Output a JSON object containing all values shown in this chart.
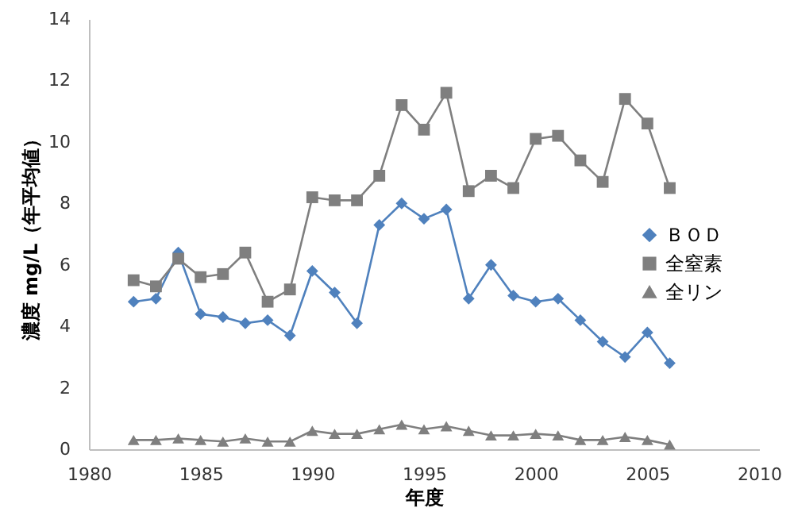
{
  "chart_data": {
    "type": "line",
    "xlabel": "年度",
    "ylabel": "濃度 mg/L（年平均値）",
    "x": [
      1982,
      1983,
      1984,
      1985,
      1986,
      1987,
      1988,
      1989,
      1990,
      1991,
      1992,
      1993,
      1994,
      1995,
      1996,
      1997,
      1998,
      1999,
      2000,
      2001,
      2002,
      2003,
      2004,
      2005,
      2006
    ],
    "series": [
      {
        "name": "ＢＯＤ",
        "color": "#4f81bd",
        "marker": "diamond",
        "values": [
          4.8,
          4.9,
          6.4,
          4.4,
          4.3,
          4.1,
          4.2,
          3.7,
          5.8,
          5.1,
          4.1,
          7.3,
          8.0,
          7.5,
          7.8,
          4.9,
          6.0,
          5.0,
          4.8,
          4.9,
          4.2,
          3.5,
          3.0,
          3.8,
          2.8
        ]
      },
      {
        "name": "全窒素",
        "color": "#7f7f7f",
        "marker": "square",
        "values": [
          5.5,
          5.3,
          6.2,
          5.6,
          5.7,
          6.4,
          4.8,
          5.2,
          8.2,
          8.1,
          8.1,
          8.9,
          11.2,
          10.4,
          11.6,
          8.4,
          8.9,
          8.5,
          10.1,
          10.2,
          9.4,
          8.7,
          11.4,
          10.6,
          8.5
        ]
      },
      {
        "name": "全リン",
        "color": "#7f7f7f",
        "marker": "triangle",
        "values": [
          0.3,
          0.3,
          0.35,
          0.3,
          0.25,
          0.35,
          0.25,
          0.25,
          0.6,
          0.5,
          0.5,
          0.65,
          0.8,
          0.65,
          0.75,
          0.6,
          0.45,
          0.45,
          0.5,
          0.45,
          0.3,
          0.3,
          0.4,
          0.3,
          0.15
        ]
      }
    ],
    "xlim": [
      1980,
      2010
    ],
    "xticks": [
      1980,
      1985,
      1990,
      1995,
      2000,
      2005,
      2010
    ],
    "ylim": [
      0,
      14
    ],
    "yticks": [
      0,
      2,
      4,
      6,
      8,
      10,
      12,
      14
    ],
    "grid": false,
    "legend": "right"
  }
}
